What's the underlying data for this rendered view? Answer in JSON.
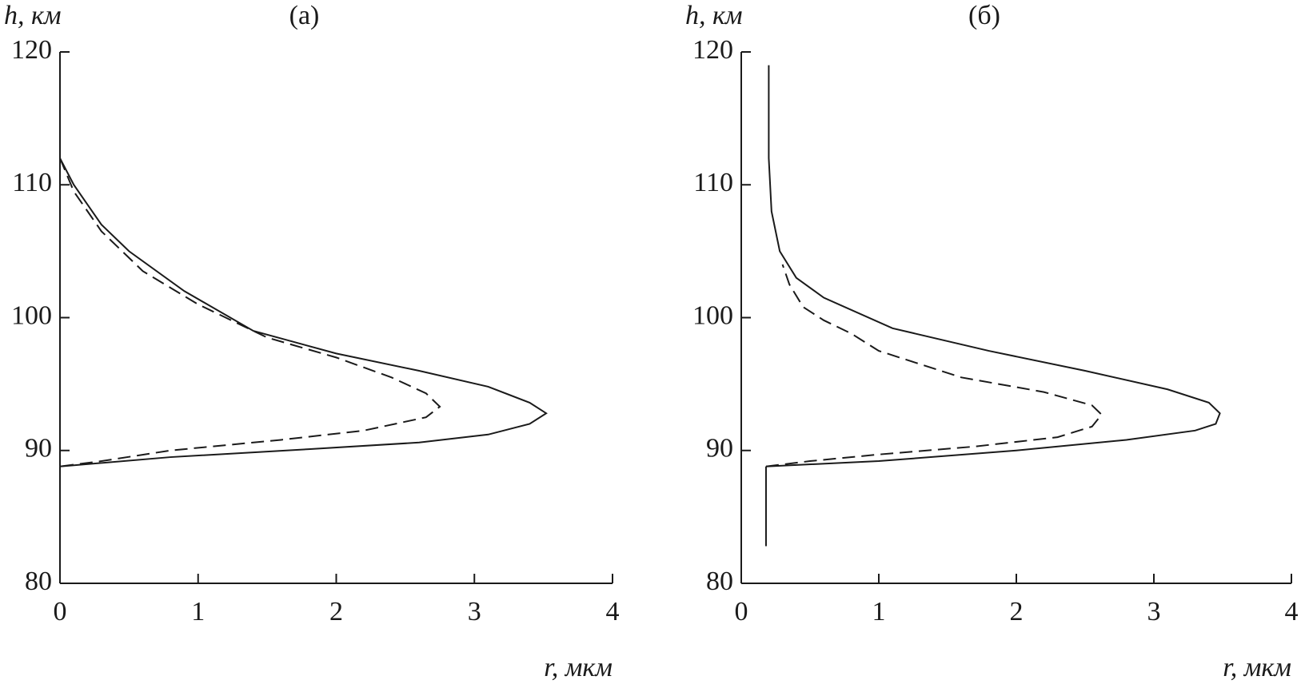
{
  "chart_data": [
    {
      "type": "line",
      "title": "(а)",
      "ylabel": "h, км",
      "xlabel": "r, мкм",
      "xlim": [
        0,
        4
      ],
      "xticks": [
        0,
        1,
        2,
        3,
        4
      ],
      "ylim": [
        80,
        120
      ],
      "yticks": [
        80,
        90,
        100,
        110,
        120
      ],
      "series": [
        {
          "color": "#1a1a1a",
          "dashed": false,
          "x": [
            0,
            0
          ],
          "values": [
            83,
            120
          ]
        },
        {
          "color": "#1a1a1a",
          "dashed": false,
          "x": [
            0,
            0.1,
            0.3,
            0.5,
            0.9,
            1.4,
            2.0,
            2.6,
            3.1,
            3.4,
            3.52,
            3.4,
            3.1,
            2.6,
            1.8,
            0.8,
            0
          ],
          "values": [
            112,
            110,
            107,
            105,
            102,
            99,
            97.3,
            96,
            94.8,
            93.6,
            92.8,
            92,
            91.2,
            90.6,
            90.1,
            89.5,
            88.8
          ]
        },
        {
          "color": "#1a1a1a",
          "dashed": true,
          "x": [
            0,
            0.1,
            0.3,
            0.6,
            1.0,
            1.5,
            2.0,
            2.4,
            2.65,
            2.75,
            2.65,
            2.2,
            1.6,
            0.8,
            0.3,
            0
          ],
          "values": [
            112,
            109.5,
            106.5,
            103.5,
            101,
            98.5,
            97,
            95.5,
            94.3,
            93.3,
            92.5,
            91.5,
            90.8,
            90,
            89.2,
            88.8
          ]
        }
      ]
    },
    {
      "type": "line",
      "title": "(б)",
      "ylabel": "h, км",
      "xlabel": "r, мкм",
      "xlim": [
        0,
        4
      ],
      "xticks": [
        0,
        1,
        2,
        3,
        4
      ],
      "ylim": [
        80,
        120
      ],
      "yticks": [
        80,
        90,
        100,
        110,
        120
      ],
      "series": [
        {
          "color": "#1a1a1a",
          "dashed": false,
          "x": [
            0.18,
            0.18
          ],
          "values": [
            82.8,
            88.8
          ]
        },
        {
          "color": "#1a1a1a",
          "dashed": false,
          "x": [
            0.18,
            1.0,
            2.0,
            2.8,
            3.3,
            3.45,
            3.48,
            3.4,
            3.1,
            2.5,
            1.8,
            1.1,
            0.6,
            0.4,
            0.28,
            0.22,
            0.2,
            0.2
          ],
          "values": [
            88.8,
            89.2,
            90,
            90.8,
            91.5,
            92,
            92.8,
            93.6,
            94.6,
            96,
            97.5,
            99.2,
            101.5,
            103,
            105,
            108,
            112,
            119
          ]
        },
        {
          "color": "#1a1a1a",
          "dashed": true,
          "x": [
            0.18,
            0.5,
            1.0,
            1.7,
            2.3,
            2.55,
            2.62,
            2.55,
            2.2,
            1.6,
            1.0,
            0.8,
            0.6,
            0.45,
            0.35,
            0.3
          ],
          "values": [
            88.8,
            89.2,
            89.7,
            90.3,
            91,
            91.8,
            92.7,
            93.4,
            94.4,
            95.5,
            97.5,
            98.8,
            99.8,
            100.8,
            102.5,
            104
          ]
        }
      ]
    }
  ]
}
